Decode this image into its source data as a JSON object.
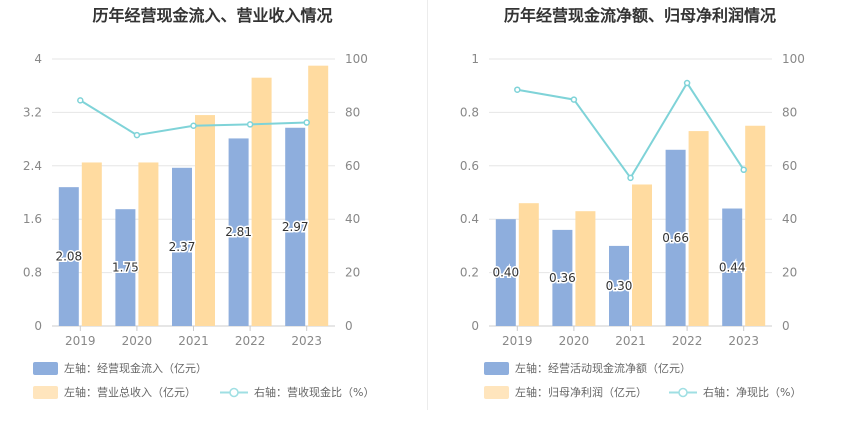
{
  "chart_data": [
    {
      "type": "bar",
      "title": "历年经营现金流入、营业收入情况",
      "categories": [
        "2019",
        "2020",
        "2021",
        "2022",
        "2023"
      ],
      "left_axis": {
        "ticks": [
          "0",
          "0.8",
          "1.6",
          "2.4",
          "3.2",
          "4"
        ],
        "ylim": [
          0,
          4
        ]
      },
      "right_axis": {
        "ticks": [
          "0",
          "20",
          "40",
          "60",
          "80",
          "100"
        ],
        "ylim": [
          0,
          100
        ]
      },
      "series": [
        {
          "name": "左轴：经营现金流入（亿元）",
          "type": "bar",
          "axis": "left",
          "color": "#8eaedd",
          "values": [
            2.08,
            1.75,
            2.37,
            2.81,
            2.97
          ],
          "labels": [
            "2.08",
            "1.75",
            "2.37",
            "2.81",
            "2.97"
          ]
        },
        {
          "name": "左轴：营业总收入（亿元）",
          "type": "bar",
          "axis": "left",
          "color": "#ffdba0",
          "values": [
            2.45,
            2.45,
            3.16,
            3.72,
            3.9
          ]
        },
        {
          "name": "右轴：营收现金比（%）",
          "type": "line",
          "axis": "right",
          "color": "#7fd3d8",
          "values": [
            84.5,
            71.5,
            75,
            75.5,
            76.2
          ]
        }
      ],
      "grid": true,
      "legend": "bottom"
    },
    {
      "type": "bar",
      "title": "历年经营现金流净额、归母净利润情况",
      "categories": [
        "2019",
        "2020",
        "2021",
        "2022",
        "2023"
      ],
      "left_axis": {
        "ticks": [
          "0",
          "0.2",
          "0.4",
          "0.6",
          "0.8",
          "1"
        ],
        "ylim": [
          0,
          1
        ]
      },
      "right_axis": {
        "ticks": [
          "0",
          "20",
          "40",
          "60",
          "80",
          "100"
        ],
        "ylim": [
          0,
          100
        ]
      },
      "series": [
        {
          "name": "左轴：经营活动现金流净额（亿元）",
          "type": "bar",
          "axis": "left",
          "color": "#8eaedd",
          "values": [
            0.4,
            0.36,
            0.3,
            0.66,
            0.44
          ],
          "labels": [
            "0.40",
            "0.36",
            "0.30",
            "0.66",
            "0.44"
          ]
        },
        {
          "name": "左轴：归母净利润（亿元）",
          "type": "bar",
          "axis": "left",
          "color": "#ffdba0",
          "values": [
            0.46,
            0.43,
            0.53,
            0.73,
            0.75
          ]
        },
        {
          "name": "右轴：净现比（%）",
          "type": "line",
          "axis": "right",
          "color": "#7fd3d8",
          "values": [
            88.5,
            84.8,
            55.5,
            91,
            58.5
          ]
        }
      ],
      "grid": true,
      "legend": "bottom"
    }
  ]
}
